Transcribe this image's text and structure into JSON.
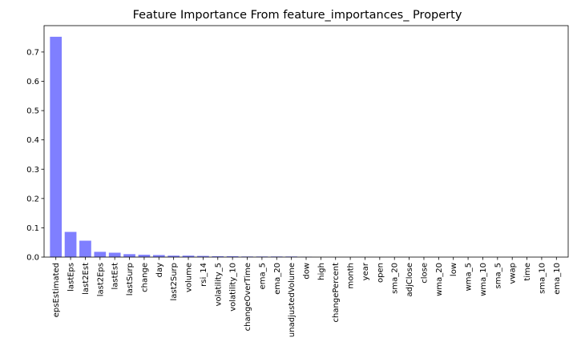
{
  "chart_data": {
    "type": "bar",
    "title": "Feature Importance From feature_importances_ Property",
    "xlabel": "",
    "ylabel": "",
    "categories": [
      "epsEstimated",
      "lastEps",
      "last2Est",
      "last2Eps",
      "lastEst",
      "lastSurp",
      "change",
      "day",
      "last2Surp",
      "volume",
      "rsi_14",
      "volatility_5",
      "volatility_10",
      "changeOverTime",
      "ema_5",
      "ema_20",
      "unadjustedVolume",
      "dow",
      "high",
      "changePercent",
      "month",
      "year",
      "open",
      "sma_20",
      "adjClose",
      "close",
      "wma_20",
      "low",
      "wma_5",
      "wma_10",
      "sma_5",
      "vwap",
      "time",
      "sma_10",
      "ema_10"
    ],
    "values": [
      0.752,
      0.086,
      0.056,
      0.018,
      0.015,
      0.01,
      0.008,
      0.007,
      0.005,
      0.005,
      0.004,
      0.003,
      0.003,
      0.002,
      0.002,
      0.002,
      0.002,
      0.001,
      0.0,
      0.0,
      0.0,
      0.0,
      0.0,
      0.0,
      0.0,
      0.0,
      0.0,
      0.0,
      0.0,
      0.0,
      0.0,
      0.0,
      0.0,
      0.0,
      0.0
    ],
    "ylim": [
      0,
      0.79
    ],
    "yticks": [
      0.0,
      0.1,
      0.2,
      0.3,
      0.4,
      0.5,
      0.6,
      0.7
    ],
    "ytick_labels": [
      "0.0",
      "0.1",
      "0.2",
      "0.3",
      "0.4",
      "0.5",
      "0.6",
      "0.7"
    ],
    "bar_color": "#7f7fff",
    "grid": false,
    "legend": "none"
  }
}
